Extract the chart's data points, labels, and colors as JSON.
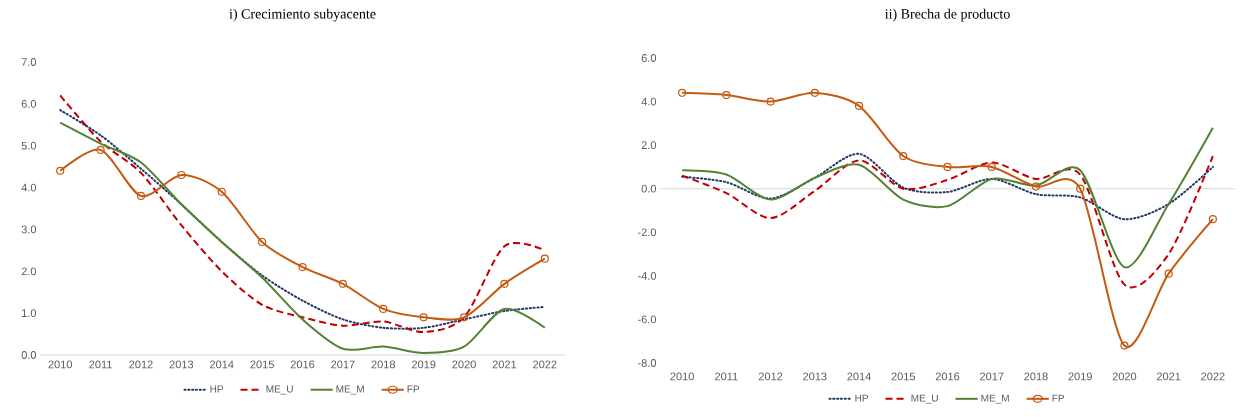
{
  "chart_data": [
    {
      "type": "line",
      "title": "i) Crecimiento subyacente",
      "categories": [
        "2010",
        "2011",
        "2012",
        "2013",
        "2014",
        "2015",
        "2016",
        "2017",
        "2018",
        "2019",
        "2020",
        "2021",
        "2022"
      ],
      "ylim": [
        0,
        7
      ],
      "yticks": [
        {
          "value": 0,
          "label": "0.0"
        },
        {
          "value": 1,
          "label": "1.0"
        },
        {
          "value": 2,
          "label": "2.0"
        },
        {
          "value": 3,
          "label": "3.0"
        },
        {
          "value": 4,
          "label": "4.0"
        },
        {
          "value": 5,
          "label": "5.0"
        },
        {
          "value": 6,
          "label": "6.0"
        },
        {
          "value": 7,
          "label": "7.0"
        }
      ],
      "legend": "bottom",
      "series": [
        {
          "name": "HP",
          "color": "#1f3864",
          "line_style": "dotted",
          "marker": "none",
          "values": [
            5.85,
            5.25,
            4.45,
            3.6,
            2.7,
            1.9,
            1.3,
            0.85,
            0.65,
            0.65,
            0.85,
            1.05,
            1.15
          ]
        },
        {
          "name": "ME_U",
          "color": "#c00000",
          "line_style": "dashed",
          "marker": "none",
          "values": [
            6.2,
            5.1,
            4.35,
            3.1,
            2.0,
            1.2,
            0.9,
            0.7,
            0.8,
            0.55,
            0.9,
            2.6,
            2.5
          ]
        },
        {
          "name": "ME_M",
          "color": "#548235",
          "line_style": "solid",
          "marker": "none",
          "values": [
            5.55,
            5.05,
            4.6,
            3.6,
            2.7,
            1.85,
            0.85,
            0.15,
            0.2,
            0.05,
            0.2,
            1.1,
            0.65
          ]
        },
        {
          "name": "FP",
          "color": "#c55a11",
          "line_style": "solid",
          "marker": "circle",
          "values": [
            4.4,
            4.9,
            3.8,
            4.3,
            3.9,
            2.7,
            2.1,
            1.7,
            1.1,
            0.9,
            0.9,
            1.7,
            2.3
          ]
        }
      ]
    },
    {
      "type": "line",
      "title": "ii) Brecha de producto",
      "categories": [
        "2010",
        "2011",
        "2012",
        "2013",
        "2014",
        "2015",
        "2016",
        "2017",
        "2018",
        "2019",
        "2020",
        "2021",
        "2022"
      ],
      "ylim": [
        -8,
        6
      ],
      "yticks": [
        {
          "value": -8,
          "label": "-8.0"
        },
        {
          "value": -6,
          "label": "-6.0"
        },
        {
          "value": -4,
          "label": "-4.0"
        },
        {
          "value": -2,
          "label": "-2.0"
        },
        {
          "value": 0,
          "label": "0.0"
        },
        {
          "value": 2,
          "label": "2.0"
        },
        {
          "value": 4,
          "label": "4.0"
        },
        {
          "value": 6,
          "label": "6.0"
        }
      ],
      "legend": "bottom",
      "series": [
        {
          "name": "HP",
          "color": "#1f3864",
          "line_style": "dotted",
          "marker": "none",
          "values": [
            0.55,
            0.3,
            -0.45,
            0.5,
            1.6,
            0.05,
            -0.15,
            0.45,
            -0.25,
            -0.4,
            -1.4,
            -0.7,
            1.0
          ]
        },
        {
          "name": "ME_U",
          "color": "#c00000",
          "line_style": "dashed",
          "marker": "none",
          "values": [
            0.6,
            -0.2,
            -1.35,
            -0.1,
            1.3,
            0.0,
            0.4,
            1.2,
            0.45,
            0.65,
            -4.4,
            -3.0,
            1.5
          ]
        },
        {
          "name": "ME_M",
          "color": "#548235",
          "line_style": "solid",
          "marker": "none",
          "values": [
            0.85,
            0.65,
            -0.5,
            0.5,
            1.1,
            -0.5,
            -0.8,
            0.45,
            0.15,
            0.85,
            -3.6,
            -0.7,
            2.8
          ]
        },
        {
          "name": "FP",
          "color": "#c55a11",
          "line_style": "solid",
          "marker": "circle",
          "values": [
            4.4,
            4.3,
            4.0,
            4.4,
            3.8,
            1.5,
            1.0,
            1.0,
            0.1,
            0.0,
            -7.2,
            -3.9,
            -1.4
          ]
        }
      ]
    }
  ]
}
